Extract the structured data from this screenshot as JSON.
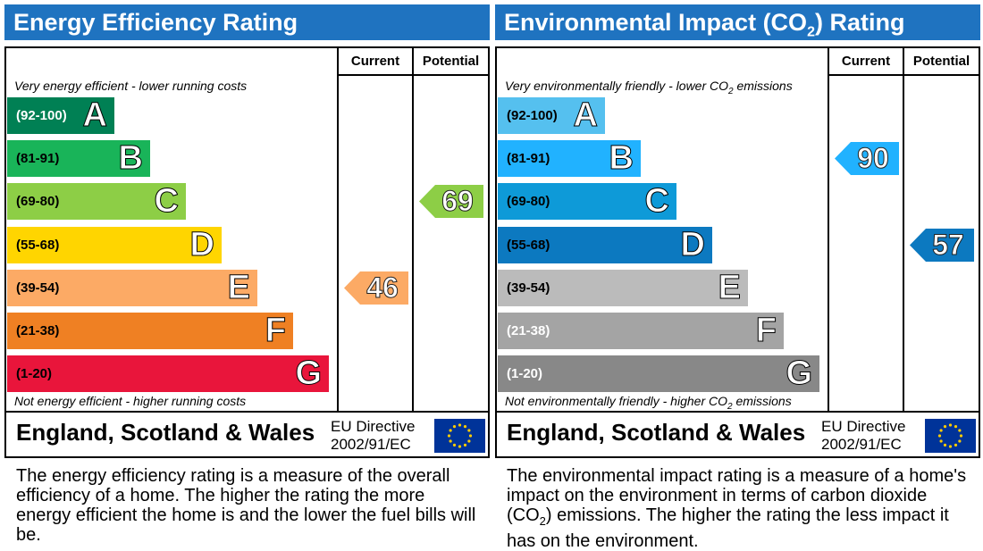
{
  "chart_data": [
    {
      "type": "bar",
      "title": "Energy Efficiency Rating",
      "columns": [
        "Current",
        "Potential"
      ],
      "top_note": "Very energy efficient - lower running costs",
      "bottom_note": "Not energy efficient - higher running costs",
      "bands": [
        {
          "range": "(92-100)",
          "letter": "A",
          "color": "#008054"
        },
        {
          "range": "(81-91)",
          "letter": "B",
          "color": "#19b459"
        },
        {
          "range": "(69-80)",
          "letter": "C",
          "color": "#8dce46"
        },
        {
          "range": "(55-68)",
          "letter": "D",
          "color": "#ffd500"
        },
        {
          "range": "(39-54)",
          "letter": "E",
          "color": "#fcaa65"
        },
        {
          "range": "(21-38)",
          "letter": "F",
          "color": "#ef8023"
        },
        {
          "range": "(1-20)",
          "letter": "G",
          "color": "#e9153b"
        }
      ],
      "current": {
        "value": 46,
        "band": "E",
        "color": "#fcaa65"
      },
      "potential": {
        "value": 69,
        "band": "C",
        "color": "#8dce46"
      },
      "footer": {
        "country": "England, Scotland & Wales",
        "directive_line1": "EU Directive",
        "directive_line2": "2002/91/EC"
      },
      "description": "The energy efficiency rating is a measure of the overall efficiency of a home. The higher the rating the more energy efficient the home is and the lower the fuel bills will be."
    },
    {
      "type": "bar",
      "title_main": "Environmental Impact (CO",
      "title_sub": "2",
      "title_end": ") Rating",
      "columns": [
        "Current",
        "Potential"
      ],
      "top_note_main": "Very environmentally friendly - lower CO",
      "top_note_sub": "2",
      "top_note_end": " emissions",
      "bottom_note_main": "Not environmentally friendly - higher CO",
      "bottom_note_sub": "2",
      "bottom_note_end": " emissions",
      "bands": [
        {
          "range": "(92-100)",
          "letter": "A",
          "color": "#55c0ef"
        },
        {
          "range": "(81-91)",
          "letter": "B",
          "color": "#21b2ff"
        },
        {
          "range": "(69-80)",
          "letter": "C",
          "color": "#0e9ad8"
        },
        {
          "range": "(55-68)",
          "letter": "D",
          "color": "#0c79c0"
        },
        {
          "range": "(39-54)",
          "letter": "E",
          "color": "#bbbbbb"
        },
        {
          "range": "(21-38)",
          "letter": "F",
          "color": "#a4a4a4"
        },
        {
          "range": "(1-20)",
          "letter": "G",
          "color": "#888888"
        }
      ],
      "current": {
        "value": 90,
        "band": "B",
        "color": "#21b2ff"
      },
      "potential": {
        "value": 57,
        "band": "D",
        "color": "#0c79c0"
      },
      "footer": {
        "country": "England, Scotland & Wales",
        "directive_line1": "EU Directive",
        "directive_line2": "2002/91/EC"
      },
      "description_main": "The environmental impact rating is a measure of a home's impact on the environment in terms of carbon dioxide (CO",
      "description_sub": "2",
      "description_end": ") emissions. The higher the rating the less impact it has on the environment."
    }
  ],
  "icons": {
    "eu_flag": "eu-flag-icon"
  }
}
